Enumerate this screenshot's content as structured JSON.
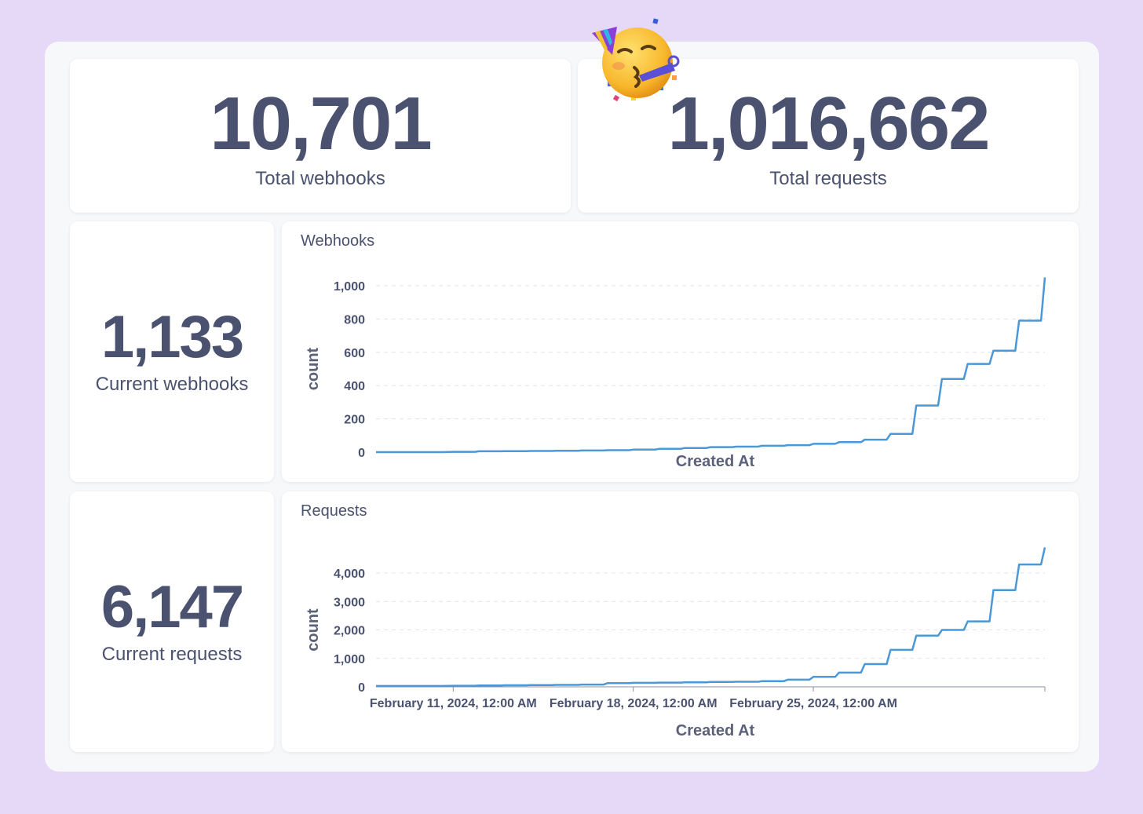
{
  "stats": {
    "total_webhooks": {
      "value": "10,701",
      "label": "Total webhooks"
    },
    "total_requests": {
      "value": "1,016,662",
      "label": "Total requests"
    },
    "current_webhooks": {
      "value": "1,133",
      "label": "Current webhooks"
    },
    "current_requests": {
      "value": "6,147",
      "label": "Current requests"
    }
  },
  "decoration": {
    "icon": "partying-face-emoji-icon"
  },
  "colors": {
    "line": "#4a98d8",
    "text": "#4a5270",
    "background": "#e6d9f7"
  },
  "chart_data": [
    {
      "type": "line",
      "title": "Webhooks",
      "xlabel": "Created At",
      "ylabel": "count",
      "ylim": [
        0,
        1000
      ],
      "yticks": [
        "0",
        "200",
        "400",
        "600",
        "800",
        "1,000"
      ],
      "grid": true,
      "x": [
        "2024-02-08",
        "2024-02-11",
        "2024-02-12",
        "2024-02-13",
        "2024-02-14",
        "2024-02-15",
        "2024-02-16",
        "2024-02-17",
        "2024-02-18",
        "2024-02-19",
        "2024-02-20",
        "2024-02-21",
        "2024-02-22",
        "2024-02-23",
        "2024-02-24",
        "2024-02-25",
        "2024-02-26",
        "2024-02-27",
        "2024-02-28",
        "2024-02-29",
        "2024-03-01",
        "2024-03-02",
        "2024-03-03",
        "2024-03-04",
        "2024-03-05"
      ],
      "series": [
        {
          "values": [
            0,
            2,
            5,
            6,
            7,
            8,
            10,
            12,
            15,
            20,
            25,
            30,
            33,
            38,
            42,
            50,
            60,
            75,
            110,
            280,
            440,
            530,
            610,
            790,
            1050
          ]
        }
      ]
    },
    {
      "type": "line",
      "title": "Requests",
      "xlabel": "Created At",
      "ylabel": "count",
      "ylim": [
        0,
        4000
      ],
      "yticks": [
        "0",
        "1,000",
        "2,000",
        "3,000",
        "4,000"
      ],
      "xticks": [
        "February 11, 2024, 12:00 AM",
        "February 18, 2024, 12:00 AM",
        "February 25, 2024, 12:00 AM"
      ],
      "grid": true,
      "x": [
        "2024-02-08",
        "2024-02-11",
        "2024-02-12",
        "2024-02-13",
        "2024-02-14",
        "2024-02-15",
        "2024-02-16",
        "2024-02-17",
        "2024-02-18",
        "2024-02-19",
        "2024-02-20",
        "2024-02-21",
        "2024-02-22",
        "2024-02-23",
        "2024-02-24",
        "2024-02-25",
        "2024-02-26",
        "2024-02-27",
        "2024-02-28",
        "2024-02-29",
        "2024-03-01",
        "2024-03-02",
        "2024-03-03",
        "2024-03-04",
        "2024-03-05"
      ],
      "series": [
        {
          "values": [
            30,
            40,
            50,
            55,
            60,
            70,
            80,
            130,
            140,
            150,
            160,
            170,
            180,
            200,
            250,
            350,
            500,
            800,
            1300,
            1800,
            2000,
            2300,
            3400,
            4300,
            4900
          ]
        }
      ]
    }
  ]
}
